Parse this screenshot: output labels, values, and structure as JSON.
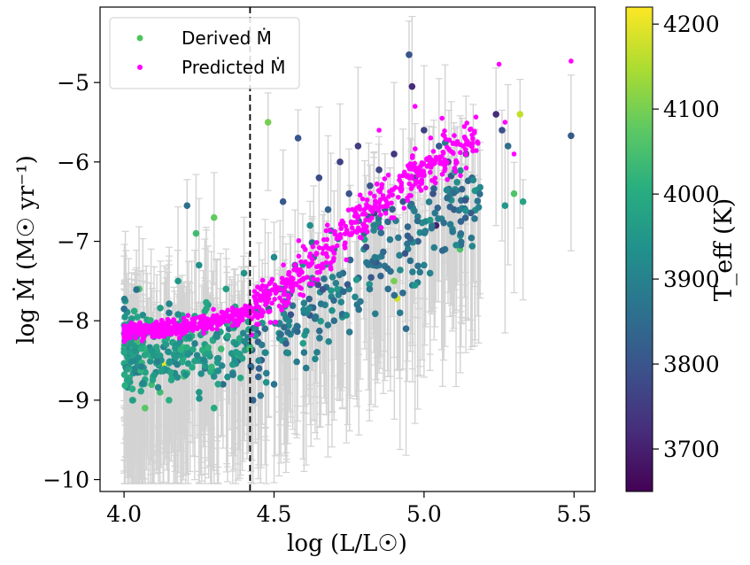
{
  "chart_data": {
    "type": "scatter",
    "xlabel": "log (L/L☉)",
    "ylabel": "log Ṁ (M☉ yr⁻¹)",
    "xlim": [
      3.92,
      5.57
    ],
    "ylim": [
      -10.15,
      -4.05
    ],
    "xticks": [
      4.0,
      4.5,
      5.0,
      5.5
    ],
    "xtick_labels": [
      "4.0",
      "4.5",
      "5.0",
      "5.5"
    ],
    "yticks": [
      -5,
      -6,
      -7,
      -8,
      -9,
      -10
    ],
    "ytick_labels": [
      "−5",
      "−6",
      "−7",
      "−8",
      "−9",
      "−10"
    ],
    "vline_x": 4.42,
    "legend": {
      "position": "top-left",
      "entries": [
        {
          "label": "Derived Ṁ",
          "color": "#4fc35e"
        },
        {
          "label": "Predicted Ṁ",
          "color": "#ff00ff"
        }
      ]
    },
    "colorbar": {
      "label": "T_eff (K)",
      "range": [
        3650,
        4220
      ],
      "ticks": [
        3700,
        3800,
        3900,
        4000,
        4100,
        4200
      ],
      "tick_labels": [
        "3700",
        "3800",
        "3900",
        "4000",
        "4100",
        "4200"
      ],
      "colormap": "viridis"
    },
    "series": [
      {
        "name": "Derived Ṁ",
        "marker": "colored-by-teff",
        "points": [
          {
            "x": 4.01,
            "y": -8.1,
            "t": 4030
          },
          {
            "x": 4.02,
            "y": -8.6,
            "t": 4080
          },
          {
            "x": 4.03,
            "y": -9.0,
            "t": 4060
          },
          {
            "x": 4.04,
            "y": -8.3,
            "t": 3950
          },
          {
            "x": 4.05,
            "y": -7.6,
            "t": 4050
          },
          {
            "x": 4.06,
            "y": -8.8,
            "t": 3990
          },
          {
            "x": 4.07,
            "y": -9.1,
            "t": 4070
          },
          {
            "x": 4.08,
            "y": -8.4,
            "t": 4010
          },
          {
            "x": 4.1,
            "y": -8.2,
            "t": 3920
          },
          {
            "x": 4.11,
            "y": -8.5,
            "t": 4100
          },
          {
            "x": 4.12,
            "y": -8.9,
            "t": 4040
          },
          {
            "x": 4.13,
            "y": -8.55,
            "t": 4200
          },
          {
            "x": 4.14,
            "y": -8.3,
            "t": 3960
          },
          {
            "x": 4.15,
            "y": -7.9,
            "t": 3880
          },
          {
            "x": 4.17,
            "y": -8.7,
            "t": 4020
          },
          {
            "x": 4.18,
            "y": -7.5,
            "t": 3950
          },
          {
            "x": 4.2,
            "y": -8.1,
            "t": 3990
          },
          {
            "x": 4.21,
            "y": -6.55,
            "t": 3860
          },
          {
            "x": 4.22,
            "y": -8.4,
            "t": 3900
          },
          {
            "x": 4.24,
            "y": -6.9,
            "t": 4040
          },
          {
            "x": 4.25,
            "y": -7.3,
            "t": 3930
          },
          {
            "x": 4.27,
            "y": -8.6,
            "t": 3870
          },
          {
            "x": 4.28,
            "y": -7.8,
            "t": 3950
          },
          {
            "x": 4.3,
            "y": -6.7,
            "t": 4080
          },
          {
            "x": 4.31,
            "y": -8.2,
            "t": 3910
          },
          {
            "x": 4.33,
            "y": -8.8,
            "t": 3850
          },
          {
            "x": 4.34,
            "y": -7.6,
            "t": 3970
          },
          {
            "x": 4.36,
            "y": -8.0,
            "t": 3890
          },
          {
            "x": 4.38,
            "y": -8.5,
            "t": 3820
          },
          {
            "x": 4.4,
            "y": -7.4,
            "t": 3940
          },
          {
            "x": 4.41,
            "y": -8.3,
            "t": 3880
          },
          {
            "x": 4.43,
            "y": -9.0,
            "t": 3830
          },
          {
            "x": 4.45,
            "y": -7.9,
            "t": 3900
          },
          {
            "x": 4.47,
            "y": -8.1,
            "t": 3860
          },
          {
            "x": 4.48,
            "y": -5.5,
            "t": 4100
          },
          {
            "x": 4.5,
            "y": -7.2,
            "t": 3920
          },
          {
            "x": 4.52,
            "y": -7.6,
            "t": 3870
          },
          {
            "x": 4.53,
            "y": -6.5,
            "t": 3810
          },
          {
            "x": 4.55,
            "y": -8.0,
            "t": 3900
          },
          {
            "x": 4.57,
            "y": -7.3,
            "t": 3840
          },
          {
            "x": 4.58,
            "y": -5.7,
            "t": 3800
          },
          {
            "x": 4.6,
            "y": -7.9,
            "t": 3880
          },
          {
            "x": 4.62,
            "y": -6.8,
            "t": 3930
          },
          {
            "x": 4.63,
            "y": -7.5,
            "t": 3860
          },
          {
            "x": 4.65,
            "y": -6.2,
            "t": 3780
          },
          {
            "x": 4.67,
            "y": -7.8,
            "t": 3900
          },
          {
            "x": 4.68,
            "y": -6.6,
            "t": 3830
          },
          {
            "x": 4.7,
            "y": -7.1,
            "t": 3870
          },
          {
            "x": 4.72,
            "y": -6.0,
            "t": 3760
          },
          {
            "x": 4.73,
            "y": -7.4,
            "t": 3850
          },
          {
            "x": 4.75,
            "y": -6.4,
            "t": 3800
          },
          {
            "x": 4.77,
            "y": -7.7,
            "t": 3910
          },
          {
            "x": 4.78,
            "y": -5.8,
            "t": 3750
          },
          {
            "x": 4.8,
            "y": -6.9,
            "t": 3840
          },
          {
            "x": 4.82,
            "y": -6.3,
            "t": 3790
          },
          {
            "x": 4.83,
            "y": -7.3,
            "t": 3880
          },
          {
            "x": 4.85,
            "y": -6.1,
            "t": 3770
          },
          {
            "x": 4.87,
            "y": -6.6,
            "t": 3820
          },
          {
            "x": 4.88,
            "y": -7.6,
            "t": 3860
          },
          {
            "x": 4.9,
            "y": -5.9,
            "t": 3740
          },
          {
            "x": 4.91,
            "y": -7.72,
            "t": 4180
          },
          {
            "x": 4.93,
            "y": -6.5,
            "t": 3800
          },
          {
            "x": 4.94,
            "y": -8.1,
            "t": 3850
          },
          {
            "x": 4.95,
            "y": -4.65,
            "t": 3800
          },
          {
            "x": 4.96,
            "y": -5.05,
            "t": 3720
          },
          {
            "x": 4.97,
            "y": -6.2,
            "t": 3780
          },
          {
            "x": 4.98,
            "y": -7.0,
            "t": 3830
          },
          {
            "x": 5.0,
            "y": -5.6,
            "t": 3760
          },
          {
            "x": 5.02,
            "y": -7.4,
            "t": 3900
          },
          {
            "x": 5.03,
            "y": -6.4,
            "t": 3790
          },
          {
            "x": 5.04,
            "y": -6.8,
            "t": 3700
          },
          {
            "x": 5.05,
            "y": -5.8,
            "t": 3810
          },
          {
            "x": 5.07,
            "y": -7.1,
            "t": 3870
          },
          {
            "x": 5.08,
            "y": -6.0,
            "t": 3760
          },
          {
            "x": 5.1,
            "y": -6.6,
            "t": 3820
          },
          {
            "x": 5.12,
            "y": -7.1,
            "t": 4060
          },
          {
            "x": 5.14,
            "y": -5.9,
            "t": 3800
          },
          {
            "x": 5.16,
            "y": -6.2,
            "t": 3840
          },
          {
            "x": 5.18,
            "y": -6.35,
            "t": 3900
          },
          {
            "x": 5.24,
            "y": -5.4,
            "t": 3720
          },
          {
            "x": 5.26,
            "y": -5.6,
            "t": 3790
          },
          {
            "x": 5.27,
            "y": -6.55,
            "t": 3950
          },
          {
            "x": 5.28,
            "y": -5.8,
            "t": 3850
          },
          {
            "x": 5.3,
            "y": -6.4,
            "t": 4060
          },
          {
            "x": 5.32,
            "y": -5.4,
            "t": 4170
          },
          {
            "x": 5.33,
            "y": -6.5,
            "t": 3980
          },
          {
            "x": 5.49,
            "y": -5.67,
            "t": 3810
          },
          {
            "x": 4.45,
            "y": -8.6,
            "t": 3830
          },
          {
            "x": 4.5,
            "y": -8.8,
            "t": 3870
          },
          {
            "x": 4.6,
            "y": -8.4,
            "t": 3880
          },
          {
            "x": 4.7,
            "y": -8.0,
            "t": 3860
          },
          {
            "x": 4.75,
            "y": -7.6,
            "t": 3900
          },
          {
            "x": 4.85,
            "y": -7.3,
            "t": 3870
          },
          {
            "x": 4.9,
            "y": -7.5,
            "t": 4100
          },
          {
            "x": 4.92,
            "y": -7.9,
            "t": 3880
          },
          {
            "x": 5.0,
            "y": -7.3,
            "t": 3900
          },
          {
            "x": 4.25,
            "y": -8.9,
            "t": 3950
          },
          {
            "x": 4.3,
            "y": -9.1,
            "t": 4000
          },
          {
            "x": 4.2,
            "y": -8.7,
            "t": 4050
          },
          {
            "x": 4.15,
            "y": -9.0,
            "t": 4010
          },
          {
            "x": 4.09,
            "y": -8.05,
            "t": 3960
          },
          {
            "x": 4.35,
            "y": -8.1,
            "t": 3850
          }
        ]
      },
      {
        "name": "Predicted Ṁ",
        "marker": "magenta",
        "trend": [
          {
            "x": 4.0,
            "y": -8.15
          },
          {
            "x": 4.1,
            "y": -8.12
          },
          {
            "x": 4.2,
            "y": -8.07
          },
          {
            "x": 4.3,
            "y": -8.0
          },
          {
            "x": 4.4,
            "y": -7.9
          },
          {
            "x": 4.5,
            "y": -7.68
          },
          {
            "x": 4.6,
            "y": -7.38
          },
          {
            "x": 4.7,
            "y": -7.05
          },
          {
            "x": 4.8,
            "y": -6.7
          },
          {
            "x": 4.9,
            "y": -6.35
          },
          {
            "x": 5.0,
            "y": -6.05
          },
          {
            "x": 5.1,
            "y": -5.85
          },
          {
            "x": 5.2,
            "y": -5.65
          },
          {
            "x": 5.3,
            "y": -5.45
          }
        ],
        "outliers": [
          {
            "x": 5.25,
            "y": -4.77
          },
          {
            "x": 5.49,
            "y": -4.73
          },
          {
            "x": 4.97,
            "y": -5.3
          },
          {
            "x": 5.06,
            "y": -5.45
          },
          {
            "x": 5.27,
            "y": -5.5
          },
          {
            "x": 5.3,
            "y": -5.9
          },
          {
            "x": 4.85,
            "y": -5.6
          }
        ]
      }
    ]
  }
}
